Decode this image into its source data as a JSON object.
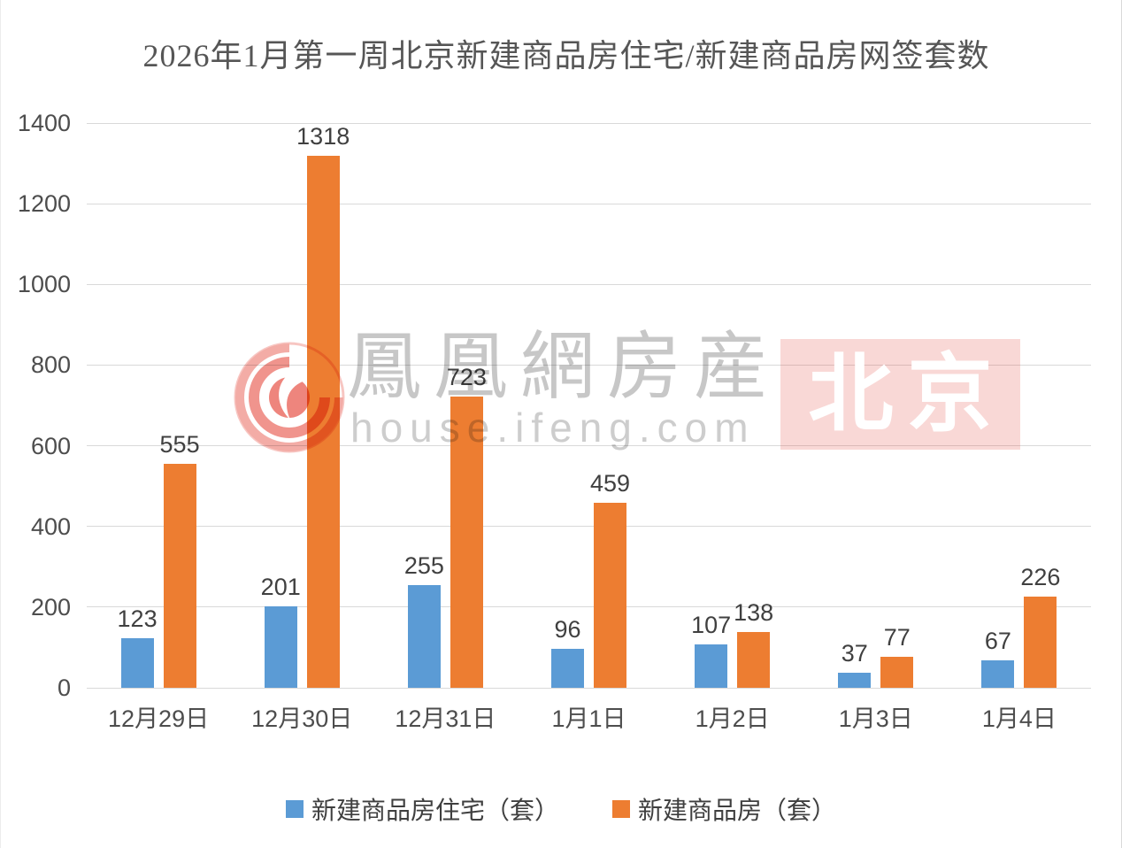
{
  "title": "2026年1月第一周北京新建商品房住宅/新建商品房网签套数",
  "chart_data": {
    "type": "bar",
    "categories": [
      "12月29日",
      "12月30日",
      "12月31日",
      "1月1日",
      "1月2日",
      "1月3日",
      "1月4日"
    ],
    "series": [
      {
        "name": "新建商品房住宅（套）",
        "color": "#5b9bd5",
        "values": [
          123,
          201,
          255,
          96,
          107,
          37,
          67
        ]
      },
      {
        "name": "新建商品房（套）",
        "color": "#ed7d31",
        "values": [
          555,
          1318,
          723,
          459,
          138,
          77,
          226
        ]
      }
    ],
    "title": "2026年1月第一周北京新建商品房住宅/新建商品房网签套数",
    "xlabel": "",
    "ylabel": "",
    "ylim": [
      0,
      1400
    ],
    "yticks": [
      0,
      200,
      400,
      600,
      800,
      1000,
      1200,
      1400
    ],
    "grid": true,
    "legend_position": "bottom",
    "data_labels": true
  },
  "colors": {
    "series_blue": "#5b9bd5",
    "series_orange": "#ed7d31",
    "gridline": "#d9d9d9",
    "label_text": "#404040",
    "title_text": "#565656",
    "watermark_gray": "#c7c7c7",
    "badge_red": "#e03c30"
  },
  "watermark": {
    "brand_cjk": "鳳凰網房産",
    "brand_url": "house.ifeng.com",
    "city_badge": "北京"
  }
}
